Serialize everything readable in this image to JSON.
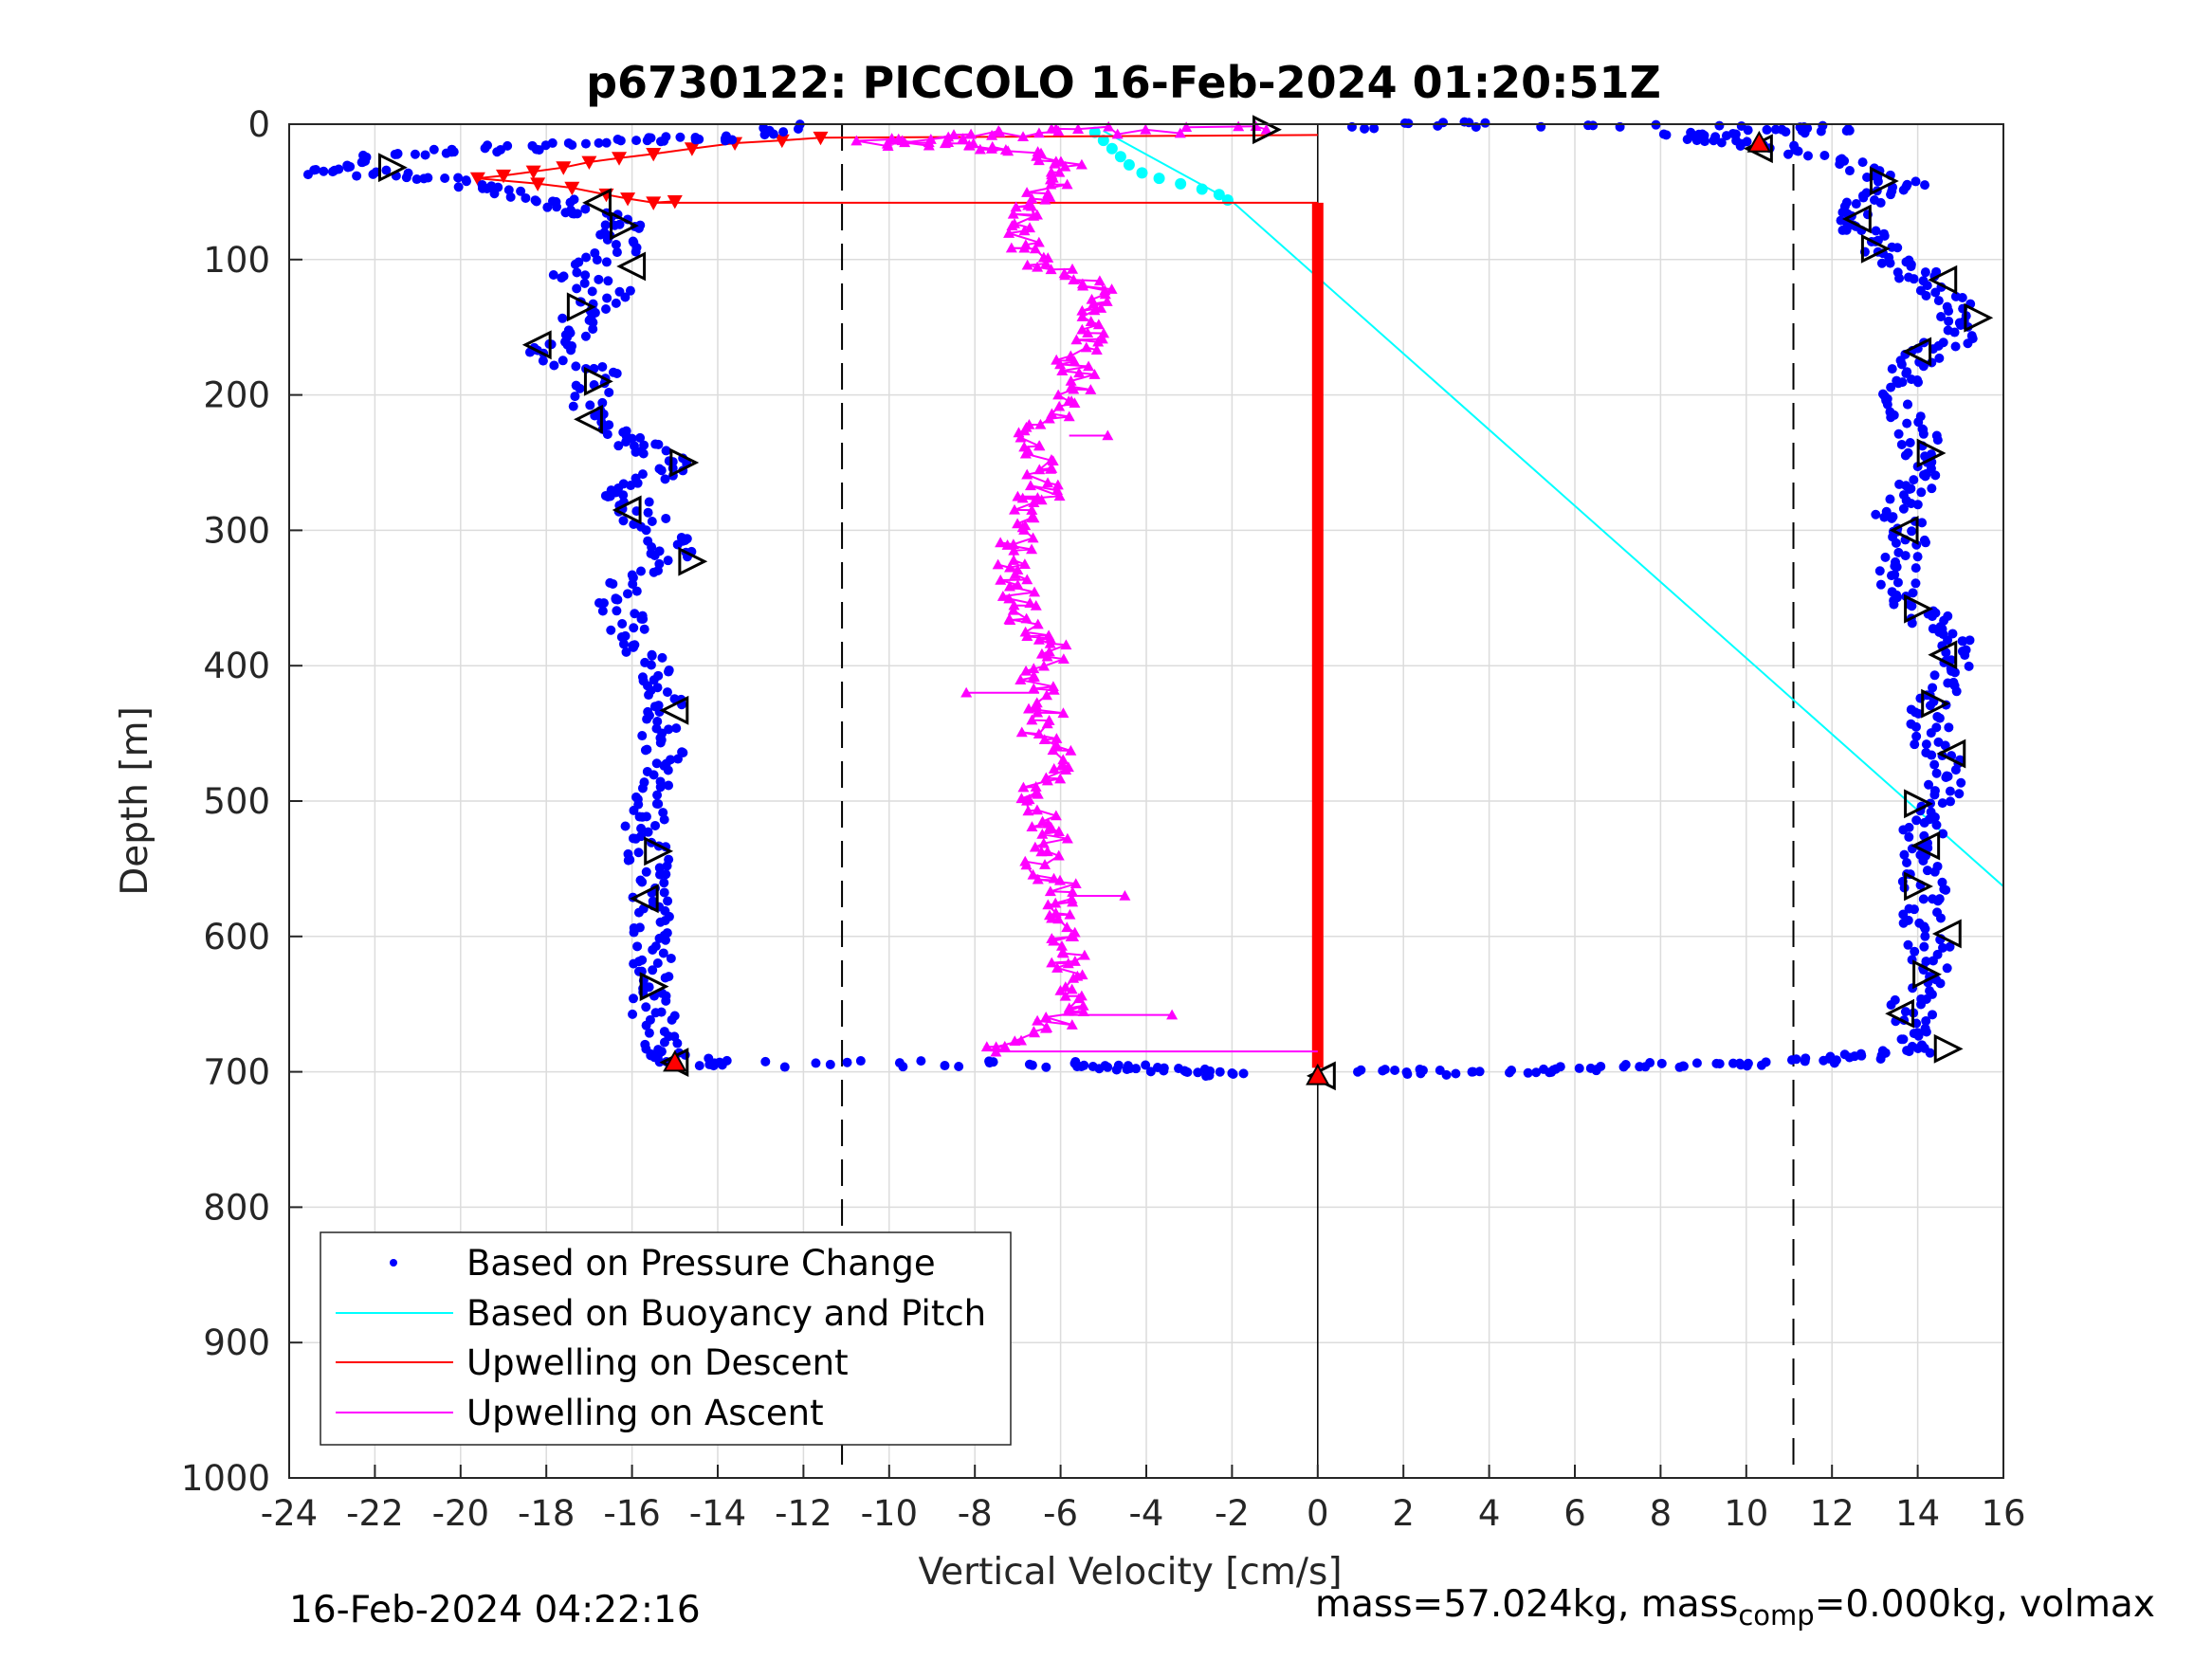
{
  "chart_data": {
    "type": "scatter",
    "title": "p6730122: PICCOLO 16-Feb-2024 01:20:51Z",
    "xlabel": "Vertical Velocity [cm/s]",
    "ylabel": "Depth [m]",
    "xlim": [
      -24,
      16
    ],
    "ylim": [
      0,
      1000
    ],
    "y_reversed": true,
    "grid": true,
    "xticks": [
      -24,
      -22,
      -20,
      -18,
      -16,
      -14,
      -12,
      -10,
      -8,
      -6,
      -4,
      -2,
      0,
      2,
      4,
      6,
      8,
      10,
      12,
      14,
      16
    ],
    "yticks": [
      0,
      100,
      200,
      300,
      400,
      500,
      600,
      700,
      800,
      900,
      1000
    ],
    "legend_position": "bottom-left",
    "reference_lines": {
      "dashed_x": [
        -11.1,
        11.1
      ],
      "solid_x": [
        0
      ]
    },
    "series": [
      {
        "name": "Based on Pressure Change",
        "style": "dots",
        "color": "#0000ff",
        "descent": [
          [
            -12,
            2
          ],
          [
            -14,
            10
          ],
          [
            -16,
            12
          ],
          [
            -18,
            16
          ],
          [
            -20,
            20
          ],
          [
            -22,
            25
          ],
          [
            -23.4,
            35
          ],
          [
            -21,
            38
          ],
          [
            -19.5,
            45
          ],
          [
            -18.2,
            55
          ],
          [
            -17,
            65
          ],
          [
            -16.3,
            75
          ],
          [
            -16.2,
            90
          ],
          [
            -17.5,
            110
          ],
          [
            -16.5,
            125
          ],
          [
            -17.2,
            140
          ],
          [
            -17.5,
            160
          ],
          [
            -18,
            170
          ],
          [
            -16.8,
            185
          ],
          [
            -17,
            210
          ],
          [
            -16.5,
            230
          ],
          [
            -15.5,
            240
          ],
          [
            -15,
            255
          ],
          [
            -16.2,
            270
          ],
          [
            -16,
            285
          ],
          [
            -15.2,
            305
          ],
          [
            -15,
            320
          ],
          [
            -16.2,
            340
          ],
          [
            -16.3,
            360
          ],
          [
            -16,
            380
          ],
          [
            -15.5,
            400
          ],
          [
            -15.2,
            420
          ],
          [
            -15.5,
            440
          ],
          [
            -15.3,
            460
          ],
          [
            -15.3,
            480
          ],
          [
            -15.5,
            500
          ],
          [
            -15.8,
            520
          ],
          [
            -15.6,
            540
          ],
          [
            -15.7,
            560
          ],
          [
            -15.5,
            580
          ],
          [
            -15.5,
            600
          ],
          [
            -15.5,
            620
          ],
          [
            -15.6,
            640
          ],
          [
            -15.5,
            660
          ],
          [
            -15.3,
            680
          ],
          [
            -15.1,
            692
          ],
          [
            -13.6,
            694
          ],
          [
            -8.4,
            694
          ],
          [
            -5.5,
            695
          ],
          [
            -4.5,
            697
          ],
          [
            -3,
            700
          ],
          [
            -2,
            701
          ]
        ],
        "ascent": [
          [
            1.2,
            701
          ],
          [
            3,
            700
          ],
          [
            5,
            699
          ],
          [
            7,
            697
          ],
          [
            9,
            695
          ],
          [
            11,
            693
          ],
          [
            12.5,
            690
          ],
          [
            13.8,
            685
          ],
          [
            14,
            670
          ],
          [
            13.8,
            650
          ],
          [
            14.2,
            630
          ],
          [
            14.3,
            610
          ],
          [
            14.1,
            590
          ],
          [
            14.2,
            570
          ],
          [
            14.1,
            550
          ],
          [
            14,
            530
          ],
          [
            14.3,
            510
          ],
          [
            14.8,
            490
          ],
          [
            14.5,
            470
          ],
          [
            14.3,
            450
          ],
          [
            14.2,
            430
          ],
          [
            14.8,
            410
          ],
          [
            15.1,
            390
          ],
          [
            14.4,
            375
          ],
          [
            14.2,
            360
          ],
          [
            13.5,
            345
          ],
          [
            13.5,
            325
          ],
          [
            13.8,
            305
          ],
          [
            13.5,
            290
          ],
          [
            13.8,
            270
          ],
          [
            14.2,
            255
          ],
          [
            14.1,
            235
          ],
          [
            13.8,
            215
          ],
          [
            13.5,
            195
          ],
          [
            13.8,
            180
          ],
          [
            14.5,
            165
          ],
          [
            15.1,
            150
          ],
          [
            14.8,
            130
          ],
          [
            14.2,
            115
          ],
          [
            13.5,
            100
          ],
          [
            12.9,
            85
          ],
          [
            12.5,
            70
          ],
          [
            12.8,
            55
          ],
          [
            13.8,
            45
          ],
          [
            12.5,
            30
          ],
          [
            11,
            18
          ],
          [
            9.5,
            12
          ],
          [
            8.3,
            8
          ],
          [
            10.5,
            5
          ],
          [
            12.2,
            2
          ],
          [
            4.4,
            0
          ],
          [
            0.8,
            2
          ]
        ]
      },
      {
        "name": "Based on Buoyancy and Pitch",
        "style": "line",
        "color": "#00ffff",
        "line": [
          [
            -5,
            5
          ],
          [
            -2,
            57
          ],
          [
            16,
            563
          ]
        ],
        "markers": [
          [
            -5.2,
            6
          ],
          [
            -5.0,
            12
          ],
          [
            -4.8,
            18
          ],
          [
            -4.6,
            24
          ],
          [
            -4.4,
            30
          ],
          [
            -4.1,
            36
          ],
          [
            -3.7,
            40
          ],
          [
            -3.2,
            44
          ],
          [
            -2.7,
            48
          ],
          [
            -2.3,
            52
          ],
          [
            -2.1,
            56
          ]
        ]
      },
      {
        "name": "Upwelling on Descent",
        "style": "line",
        "color": "#ff0000",
        "points": [
          [
            -11.6,
            10
          ],
          [
            -12.5,
            12
          ],
          [
            -13.6,
            14
          ],
          [
            -14.6,
            18
          ],
          [
            -15.5,
            22
          ],
          [
            -16.3,
            25
          ],
          [
            -17,
            28
          ],
          [
            -17.6,
            32
          ],
          [
            -18.3,
            35
          ],
          [
            -19,
            38
          ],
          [
            -19.6,
            40
          ],
          [
            -18.2,
            44
          ],
          [
            -17.4,
            47
          ],
          [
            -16.6,
            52
          ],
          [
            -16.1,
            55
          ],
          [
            -15.5,
            58
          ],
          [
            -15,
            57
          ]
        ],
        "vertical": {
          "x": 0,
          "y_start": 58,
          "y_end": 697
        }
      },
      {
        "name": "Upwelling on Ascent",
        "style": "line",
        "color": "#ff00ff",
        "points": [
          [
            -7.5,
            685
          ],
          [
            -6.5,
            670
          ],
          [
            -5.5,
            650
          ],
          [
            -5.7,
            630
          ],
          [
            -5.9,
            610
          ],
          [
            -6.1,
            590
          ],
          [
            -5.7,
            570
          ],
          [
            -6.5,
            550
          ],
          [
            -6.1,
            530
          ],
          [
            -6.3,
            510
          ],
          [
            -6.6,
            490
          ],
          [
            -6.0,
            470
          ],
          [
            -6.5,
            450
          ],
          [
            -6.3,
            430
          ],
          [
            -6.6,
            410
          ],
          [
            -6.1,
            390
          ],
          [
            -6.8,
            370
          ],
          [
            -7.0,
            350
          ],
          [
            -7.1,
            330
          ],
          [
            -7.0,
            310
          ],
          [
            -6.7,
            290
          ],
          [
            -6.4,
            270
          ],
          [
            -6.3,
            250
          ],
          [
            -6.6,
            230
          ],
          [
            -6.0,
            210
          ],
          [
            -5.4,
            190
          ],
          [
            -5.7,
            170
          ],
          [
            -5.2,
            150
          ],
          [
            -5.0,
            130
          ],
          [
            -5.3,
            115
          ],
          [
            -6.7,
            100
          ],
          [
            -7.0,
            80
          ],
          [
            -6.9,
            60
          ],
          [
            -6.2,
            45
          ],
          [
            -5.6,
            30
          ],
          [
            -7.0,
            20
          ],
          [
            -8.6,
            12
          ],
          [
            -10.4,
            14
          ],
          [
            -7.6,
            8
          ],
          [
            -5.5,
            5
          ],
          [
            -1.2,
            4
          ]
        ],
        "outliers": [
          [
            -3.4,
            658
          ],
          [
            -4.5,
            570
          ],
          [
            -8.2,
            420
          ],
          [
            -4.9,
            230
          ],
          [
            -7.0,
            275
          ]
        ]
      }
    ],
    "extra_markers": {
      "open_triangles": [
        [
          -21.6,
          32
        ],
        [
          -16.8,
          58
        ],
        [
          -16.2,
          75
        ],
        [
          -16.0,
          105
        ],
        [
          -17.2,
          135
        ],
        [
          -18.2,
          163
        ],
        [
          -16.8,
          190
        ],
        [
          -17.0,
          218
        ],
        [
          -14.8,
          250
        ],
        [
          -16.1,
          285
        ],
        [
          -14.6,
          323
        ],
        [
          -15.0,
          433
        ],
        [
          -15.4,
          537
        ],
        [
          -15.7,
          572
        ],
        [
          -15.5,
          637
        ],
        [
          -15.0,
          693
        ],
        [
          -1.2,
          4
        ],
        [
          10.3,
          18
        ],
        [
          13.2,
          42
        ],
        [
          12.6,
          70
        ],
        [
          13.0,
          92
        ],
        [
          14.6,
          115
        ],
        [
          15.4,
          143
        ],
        [
          14.0,
          168
        ],
        [
          14.3,
          243
        ],
        [
          13.7,
          300
        ],
        [
          14.0,
          358
        ],
        [
          14.6,
          392
        ],
        [
          14.4,
          428
        ],
        [
          14.8,
          465
        ],
        [
          14.0,
          502
        ],
        [
          14.2,
          533
        ],
        [
          14.0,
          563
        ],
        [
          14.7,
          598
        ],
        [
          14.2,
          628
        ],
        [
          13.6,
          657
        ],
        [
          14.7,
          683
        ],
        [
          0.1,
          703
        ]
      ],
      "red_filled": [
        [
          10.3,
          14
        ],
        [
          -15.0,
          693
        ],
        [
          0.0,
          703
        ]
      ]
    }
  },
  "footer": {
    "timestamp": "16-Feb-2024 04:22:16",
    "mass_text": "mass=57.024kg, mass",
    "mass_sub": "comp",
    "mass_tail": "=0.000kg, volmax"
  }
}
